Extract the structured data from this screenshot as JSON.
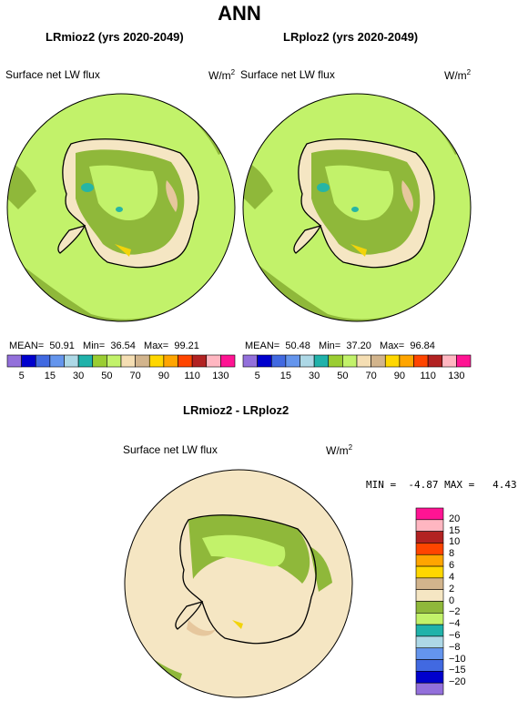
{
  "title": "ANN",
  "colors": {
    "land_green": "#c2f26a",
    "dark_green": "#8fb83a",
    "tan": "#e6c79d",
    "cream": "#f5e6c3",
    "teal": "#26b5a5",
    "yellow": "#f2d40a",
    "coast": "#000000"
  },
  "panels": [
    {
      "title": "LRmioz2 (yrs 2020-2049)",
      "variable": "Surface net LW flux",
      "units": "W/m",
      "units_exp": "2",
      "stats": {
        "mean_label": "MEAN=",
        "mean": "50.91",
        "min_label": "Min=",
        "min": "36.54",
        "max_label": "Max=",
        "max": "99.21"
      }
    },
    {
      "title": "LRploz2 (yrs 2020-2049)",
      "variable": "Surface net LW flux",
      "units": "W/m",
      "units_exp": "2",
      "stats": {
        "mean_label": "MEAN=",
        "mean": "50.48",
        "min_label": "Min=",
        "min": "37.20",
        "max_label": "Max=",
        "max": "96.84"
      }
    }
  ],
  "colorbar_top": {
    "colors": [
      "#9370db",
      "#0000cd",
      "#4169e1",
      "#6495ed",
      "#add8e6",
      "#20b2aa",
      "#9acd32",
      "#c2f26a",
      "#f5deb3",
      "#d2b48c",
      "#ffd700",
      "#ffa500",
      "#ff4500",
      "#b22222",
      "#ffb6c1",
      "#ff1493"
    ],
    "labels": [
      "5",
      "15",
      "30",
      "50",
      "70",
      "90",
      "110",
      "130"
    ]
  },
  "diff": {
    "title": "LRmioz2 - LRploz2",
    "variable": "Surface net LW flux",
    "units": "W/m",
    "units_exp": "2",
    "min_label": "MIN =",
    "min": "-4.87",
    "max_label": "MAX =",
    "max": "4.43",
    "colorbar": {
      "colors": [
        "#ff1493",
        "#ffb6c1",
        "#b22222",
        "#ff4500",
        "#ffa500",
        "#ffd700",
        "#d2b48c",
        "#f5e6c3",
        "#8fb83a",
        "#c2f26a",
        "#20b2aa",
        "#add8e6",
        "#6495ed",
        "#4169e1",
        "#0000cd",
        "#9370db"
      ],
      "labels": [
        "20",
        "15",
        "10",
        "8",
        "6",
        "4",
        "2",
        "0",
        "−2",
        "−4",
        "−6",
        "−8",
        "−10",
        "−15",
        "−20"
      ]
    }
  }
}
